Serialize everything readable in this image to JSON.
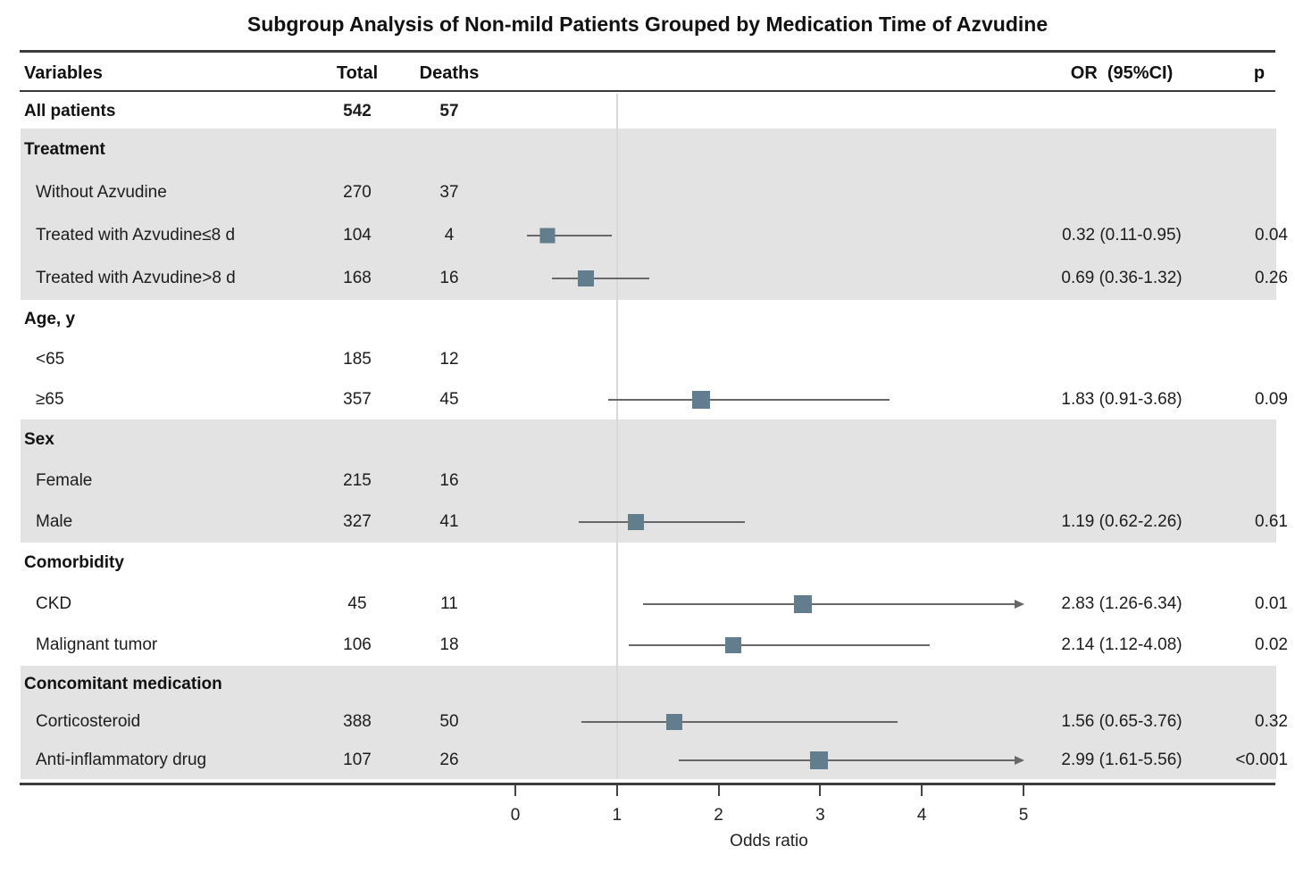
{
  "title": "Subgroup Analysis of Non-mild Patients Grouped by Medication Time of Azvudine",
  "header": {
    "variables": "Variables",
    "total": "Total",
    "deaths": "Deaths",
    "or": "OR  (95%CI)",
    "p": "p"
  },
  "axis": {
    "label": "Odds ratio",
    "ticks": [
      0,
      1,
      2,
      3,
      4,
      5
    ],
    "min": 0,
    "max": 5,
    "reference_line_x": 1
  },
  "colors": {
    "marker": "#627e8e",
    "band": "#e3e3e3",
    "whisker": "#686868",
    "refline": "#d8d8d8",
    "rule": "#3c3c3c"
  },
  "rows": [
    {
      "label": "All patients",
      "style": "bold",
      "total": "542",
      "deaths": "57",
      "shaded": false
    },
    {
      "label": "Treatment",
      "style": "section",
      "shaded": true
    },
    {
      "label": "Without Azvudine",
      "style": "item",
      "total": "270",
      "deaths": "37",
      "shaded": true
    },
    {
      "label": "Treated with Azvudine≤8 d",
      "style": "item",
      "total": "104",
      "deaths": "4",
      "shaded": true,
      "or_text": "0.32 (0.11-0.95)",
      "p": "0.04",
      "plot": {
        "or": 0.32,
        "lo": 0.11,
        "hi": 0.95,
        "arrow": false,
        "size": 17
      }
    },
    {
      "label": "Treated with Azvudine>8 d",
      "style": "item",
      "total": "168",
      "deaths": "16",
      "shaded": true,
      "or_text": "0.69 (0.36-1.32)",
      "p": "0.26",
      "plot": {
        "or": 0.69,
        "lo": 0.36,
        "hi": 1.32,
        "arrow": false,
        "size": 18
      }
    },
    {
      "label": "Age, y",
      "style": "section",
      "shaded": false
    },
    {
      "label": "<65",
      "style": "item",
      "total": "185",
      "deaths": "12",
      "shaded": false
    },
    {
      "label": "≥65",
      "style": "item",
      "total": "357",
      "deaths": "45",
      "shaded": false,
      "or_text": "1.83 (0.91-3.68)",
      "p": "0.09",
      "plot": {
        "or": 1.83,
        "lo": 0.91,
        "hi": 3.68,
        "arrow": false,
        "size": 20
      }
    },
    {
      "label": "Sex",
      "style": "section",
      "shaded": true
    },
    {
      "label": "Female",
      "style": "item",
      "total": "215",
      "deaths": "16",
      "shaded": true
    },
    {
      "label": "Male",
      "style": "item",
      "total": "327",
      "deaths": "41",
      "shaded": true,
      "or_text": "1.19 (0.62-2.26)",
      "p": "0.61",
      "plot": {
        "or": 1.19,
        "lo": 0.62,
        "hi": 2.26,
        "arrow": false,
        "size": 18
      }
    },
    {
      "label": "Comorbidity",
      "style": "section",
      "shaded": false
    },
    {
      "label": "CKD",
      "style": "item",
      "total": "45",
      "deaths": "11",
      "shaded": false,
      "or_text": "2.83 (1.26-6.34)",
      "p": "0.01",
      "plot": {
        "or": 2.83,
        "lo": 1.26,
        "hi": 6.34,
        "arrow": true,
        "size": 20
      }
    },
    {
      "label": "Malignant tumor",
      "style": "item",
      "total": "106",
      "deaths": "18",
      "shaded": false,
      "or_text": "2.14 (1.12-4.08)",
      "p": "0.02",
      "plot": {
        "or": 2.14,
        "lo": 1.12,
        "hi": 4.08,
        "arrow": false,
        "size": 18
      }
    },
    {
      "label": "Concomitant medication",
      "style": "section",
      "shaded": true
    },
    {
      "label": "Corticosteroid",
      "style": "item",
      "total": "388",
      "deaths": "50",
      "shaded": true,
      "or_text": "1.56 (0.65-3.76)",
      "p": "0.32",
      "plot": {
        "or": 1.56,
        "lo": 0.65,
        "hi": 3.76,
        "arrow": false,
        "size": 18
      }
    },
    {
      "label": "Anti-inflammatory drug",
      "style": "item",
      "total": "107",
      "deaths": "26",
      "shaded": true,
      "or_text": "2.99 (1.61-5.56)",
      "p": "<0.001",
      "plot": {
        "or": 2.99,
        "lo": 1.61,
        "hi": 5.56,
        "arrow": true,
        "size": 20
      }
    }
  ],
  "chart_data": {
    "type": "scatter",
    "subtype": "forest-plot",
    "title": "Subgroup Analysis of Non-mild Patients Grouped by Medication Time of Azvudine",
    "xlabel": "Odds ratio",
    "xlim": [
      0,
      5
    ],
    "xticks": [
      0,
      1,
      2,
      3,
      4,
      5
    ],
    "reference_line_x": 1,
    "categories": [
      "Treated with Azvudine≤8 d",
      "Treated with Azvudine>8 d",
      "≥65",
      "Male",
      "CKD",
      "Malignant tumor",
      "Corticosteroid",
      "Anti-inflammatory drug"
    ],
    "series": [
      {
        "name": "OR",
        "values": [
          0.32,
          0.69,
          1.83,
          1.19,
          2.83,
          2.14,
          1.56,
          2.99
        ]
      },
      {
        "name": "CI_low",
        "values": [
          0.11,
          0.36,
          0.91,
          0.62,
          1.26,
          1.12,
          0.65,
          1.61
        ]
      },
      {
        "name": "CI_high",
        "values": [
          0.95,
          1.32,
          3.68,
          2.26,
          6.34,
          4.08,
          3.76,
          5.56
        ]
      },
      {
        "name": "p",
        "values": [
          "0.04",
          "0.26",
          "0.09",
          "0.61",
          "0.01",
          "0.02",
          "0.32",
          "<0.001"
        ]
      },
      {
        "name": "Total",
        "values": [
          104,
          168,
          357,
          327,
          45,
          106,
          388,
          107
        ]
      },
      {
        "name": "Deaths",
        "values": [
          4,
          16,
          45,
          41,
          11,
          18,
          50,
          26
        ]
      }
    ],
    "all_patients": {
      "total": 542,
      "deaths": 57
    },
    "ci_clipped_with_arrow": [
      "CKD",
      "Anti-inflammatory drug"
    ]
  }
}
